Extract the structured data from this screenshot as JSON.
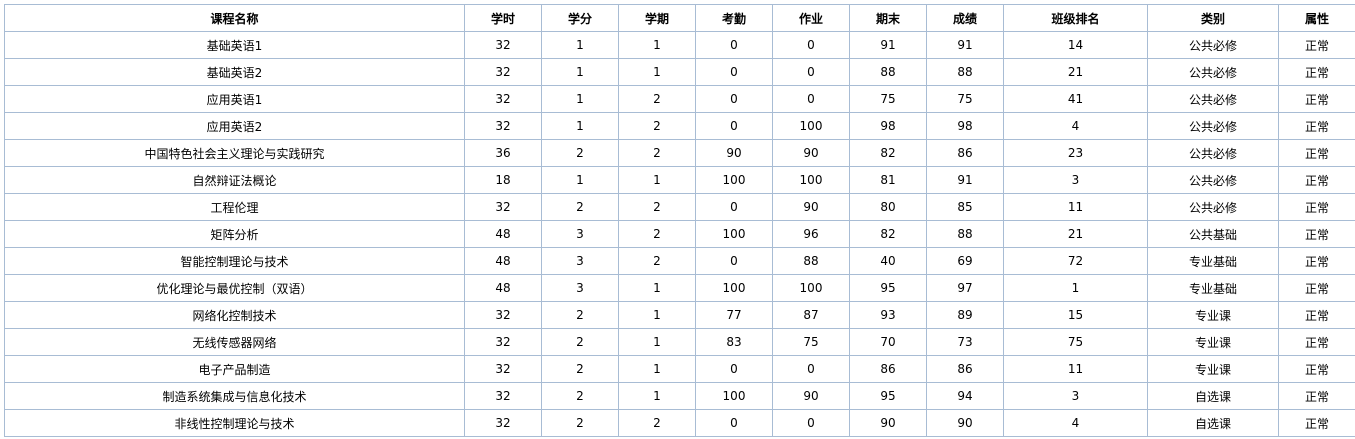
{
  "table": {
    "headers": [
      "课程名称",
      "学时",
      "学分",
      "学期",
      "考勤",
      "作业",
      "期末",
      "成绩",
      "班级排名",
      "类别",
      "属性"
    ],
    "rows": [
      [
        "基础英语1",
        "32",
        "1",
        "1",
        "0",
        "0",
        "91",
        "91",
        "14",
        "公共必修",
        "正常"
      ],
      [
        "基础英语2",
        "32",
        "1",
        "1",
        "0",
        "0",
        "88",
        "88",
        "21",
        "公共必修",
        "正常"
      ],
      [
        "应用英语1",
        "32",
        "1",
        "2",
        "0",
        "0",
        "75",
        "75",
        "41",
        "公共必修",
        "正常"
      ],
      [
        "应用英语2",
        "32",
        "1",
        "2",
        "0",
        "100",
        "98",
        "98",
        "4",
        "公共必修",
        "正常"
      ],
      [
        "中国特色社会主义理论与实践研究",
        "36",
        "2",
        "2",
        "90",
        "90",
        "82",
        "86",
        "23",
        "公共必修",
        "正常"
      ],
      [
        "自然辩证法概论",
        "18",
        "1",
        "1",
        "100",
        "100",
        "81",
        "91",
        "3",
        "公共必修",
        "正常"
      ],
      [
        "工程伦理",
        "32",
        "2",
        "2",
        "0",
        "90",
        "80",
        "85",
        "11",
        "公共必修",
        "正常"
      ],
      [
        "矩阵分析",
        "48",
        "3",
        "2",
        "100",
        "96",
        "82",
        "88",
        "21",
        "公共基础",
        "正常"
      ],
      [
        "智能控制理论与技术",
        "48",
        "3",
        "2",
        "0",
        "88",
        "40",
        "69",
        "72",
        "专业基础",
        "正常"
      ],
      [
        "优化理论与最优控制（双语）",
        "48",
        "3",
        "1",
        "100",
        "100",
        "95",
        "97",
        "1",
        "专业基础",
        "正常"
      ],
      [
        "网络化控制技术",
        "32",
        "2",
        "1",
        "77",
        "87",
        "93",
        "89",
        "15",
        "专业课",
        "正常"
      ],
      [
        "无线传感器网络",
        "32",
        "2",
        "1",
        "83",
        "75",
        "70",
        "73",
        "75",
        "专业课",
        "正常"
      ],
      [
        "电子产品制造",
        "32",
        "2",
        "1",
        "0",
        "0",
        "86",
        "86",
        "11",
        "专业课",
        "正常"
      ],
      [
        "制造系统集成与信息化技术",
        "32",
        "2",
        "1",
        "100",
        "90",
        "95",
        "94",
        "3",
        "自选课",
        "正常"
      ],
      [
        "非线性控制理论与技术",
        "32",
        "2",
        "2",
        "0",
        "0",
        "90",
        "90",
        "4",
        "自选课",
        "正常"
      ]
    ]
  },
  "colors": {
    "border": "#a8bcd4",
    "background": "#ffffff",
    "text": "#000000"
  }
}
